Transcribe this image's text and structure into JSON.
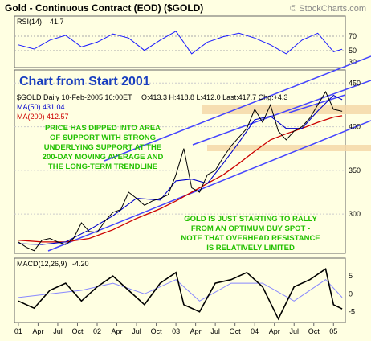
{
  "header": {
    "title": "Gold - Continuous Contract (EOD) ($GOLD)",
    "source": "© StockCharts.com"
  },
  "rsi_panel": {
    "label": "RSI(14)",
    "value": "41.7",
    "ticks": [
      "70",
      "50",
      "30"
    ]
  },
  "price_panel": {
    "banner": "Chart from Start 2001",
    "info_line": "$GOLD Daily 10-Feb-2005 16:00ET",
    "ohlc": "O:413.3  H:418.8  L:412.0  Last:417.7  Chg:+4.3",
    "ma50_label": "MA(50) 431.04",
    "ma200_label": "MA(200) 412.57",
    "annotation_1": [
      "PRICE HAS DIPPED INTO AREA",
      "OF SUPPORT WITH STRONG",
      "UNDERLYING SUPPORT AT THE",
      "200-DAY MOVING AVERAGE AND",
      "THE LONG-TERM TRENDLINE"
    ],
    "annotation_2": [
      "GOLD IS JUST STARTING TO RALLY",
      "FROM AN OPTIMUM BUY SPOT -",
      "NOTE THAT OVERHEAD RESISTANCE",
      "IS RELATIVELY LIMITED"
    ]
  },
  "macd_panel": {
    "label": "MACD(12,26,9)",
    "value": "-4.20",
    "ticks": [
      "5",
      "0",
      "-5"
    ]
  },
  "colors": {
    "background": "#ffffe2",
    "rsi_line": "#1a1aff",
    "ma50": "#0000cc",
    "ma200": "#cc0000",
    "bars": "#000000",
    "trend_lines": "#4444ff",
    "annotation_text": "#22c000",
    "banner_text": "#1a3fbf",
    "support_zone": "#f4d8a8",
    "macd_line": "#000000",
    "macd_signal": "#8888ff"
  },
  "chart_data": {
    "type": "line",
    "x_labels": [
      "01",
      "Apr",
      "Jul",
      "Oct",
      "02",
      "Apr",
      "Jul",
      "Oct",
      "03",
      "Apr",
      "Jul",
      "Oct",
      "04",
      "Apr",
      "Jul",
      "Oct",
      "05"
    ],
    "price_axis": {
      "ylim": [
        255,
        465
      ],
      "ticks": [
        300,
        350,
        400,
        450
      ]
    },
    "price": {
      "x": [
        2001.0,
        2001.1,
        2001.2,
        2001.3,
        2001.4,
        2001.5,
        2001.6,
        2001.7,
        2001.8,
        2001.9,
        2002.0,
        2002.1,
        2002.2,
        2002.3,
        2002.4,
        2002.5,
        2002.6,
        2002.7,
        2002.8,
        2002.9,
        2003.0,
        2003.1,
        2003.2,
        2003.3,
        2003.4,
        2003.5,
        2003.6,
        2003.7,
        2003.8,
        2003.9,
        2004.0,
        2004.1,
        2004.2,
        2004.3,
        2004.4,
        2004.5,
        2004.6,
        2004.7,
        2004.8,
        2004.9,
        2005.0,
        2005.11
      ],
      "y": [
        268,
        262,
        258,
        270,
        272,
        268,
        265,
        272,
        290,
        280,
        279,
        292,
        302,
        305,
        325,
        318,
        310,
        315,
        318,
        322,
        345,
        375,
        330,
        325,
        345,
        350,
        365,
        378,
        388,
        398,
        420,
        405,
        425,
        395,
        385,
        395,
        400,
        410,
        425,
        440,
        420,
        417.7
      ]
    },
    "ma50": {
      "x": [
        2001.0,
        2001.3,
        2001.6,
        2001.9,
        2002.2,
        2002.5,
        2002.8,
        2003.0,
        2003.2,
        2003.4,
        2003.6,
        2003.8,
        2004.0,
        2004.2,
        2004.4,
        2004.6,
        2004.8,
        2005.0,
        2005.11
      ],
      "y": [
        266,
        265,
        268,
        282,
        298,
        318,
        316,
        338,
        340,
        335,
        358,
        382,
        408,
        412,
        398,
        398,
        418,
        436,
        431
      ]
    },
    "ma200": {
      "x": [
        2001.0,
        2001.3,
        2001.6,
        2001.9,
        2002.2,
        2002.5,
        2002.8,
        2003.0,
        2003.2,
        2003.4,
        2003.6,
        2003.8,
        2004.0,
        2004.2,
        2004.4,
        2004.6,
        2004.8,
        2005.0,
        2005.11
      ],
      "y": [
        270,
        268,
        268,
        272,
        282,
        295,
        306,
        315,
        325,
        335,
        345,
        358,
        372,
        385,
        392,
        398,
        405,
        411,
        412.6
      ]
    },
    "rsi": {
      "ylim": [
        15,
        90
      ],
      "x": [
        2001.0,
        2001.2,
        2001.4,
        2001.6,
        2001.8,
        2002.0,
        2002.2,
        2002.4,
        2002.6,
        2002.8,
        2003.0,
        2003.2,
        2003.4,
        2003.6,
        2003.8,
        2004.0,
        2004.2,
        2004.4,
        2004.6,
        2004.8,
        2005.0,
        2005.11
      ],
      "y": [
        48,
        42,
        55,
        62,
        45,
        52,
        64,
        58,
        40,
        55,
        68,
        35,
        52,
        60,
        65,
        58,
        48,
        35,
        55,
        65,
        38,
        41.7
      ]
    },
    "macd": {
      "ylim": [
        -8,
        10
      ],
      "x": [
        2001.0,
        2001.2,
        2001.4,
        2001.6,
        2001.8,
        2002.0,
        2002.2,
        2002.4,
        2002.6,
        2002.8,
        2003.0,
        2003.1,
        2003.3,
        2003.5,
        2003.7,
        2003.9,
        2004.1,
        2004.3,
        2004.5,
        2004.7,
        2004.9,
        2005.0,
        2005.11
      ],
      "y": [
        -2,
        -4,
        1,
        3,
        -2,
        2,
        5,
        1,
        -3,
        3,
        6,
        -3,
        -5,
        3,
        4,
        6,
        2,
        -7,
        2,
        4,
        7,
        -3,
        -4.2
      ]
    },
    "macd_signal": {
      "x": [
        2001.0,
        2001.4,
        2001.8,
        2002.2,
        2002.6,
        2003.0,
        2003.3,
        2003.7,
        2004.1,
        2004.5,
        2004.9,
        2005.11
      ],
      "y": [
        -1,
        0,
        1,
        3,
        0,
        4,
        -2,
        3,
        3,
        -2,
        4,
        -1
      ]
    },
    "time_range": [
      2000.95,
      2005.15
    ]
  }
}
